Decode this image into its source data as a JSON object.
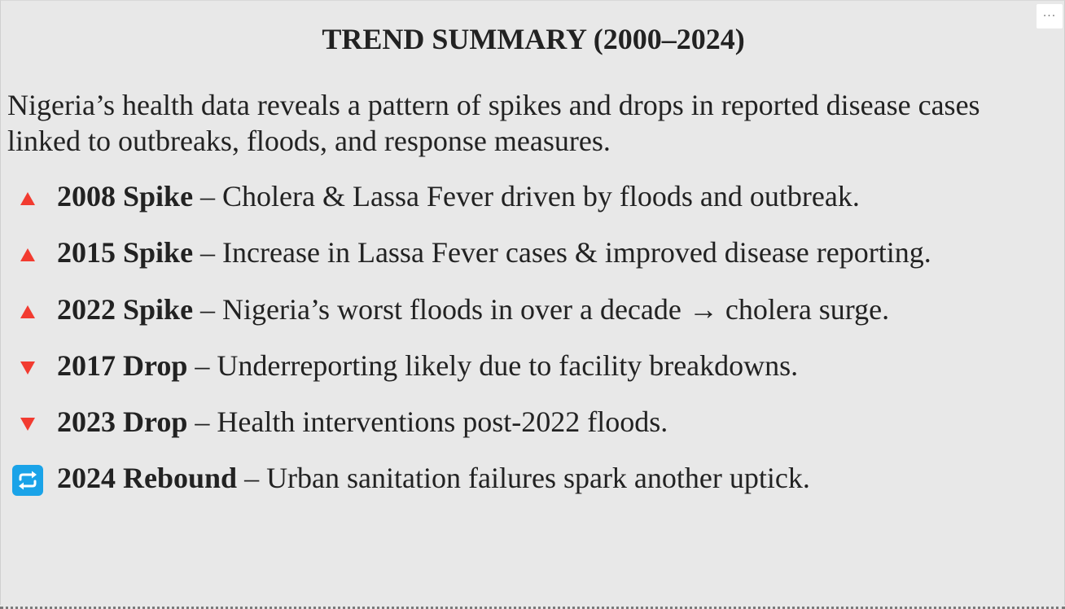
{
  "menu": {
    "more_label": "···"
  },
  "title": "TREND SUMMARY (2000–2024)",
  "intro": "Nigeria’s health data reveals a pattern of spikes and drops in reported disease cases linked to outbreaks, floods, and response measures.",
  "items": [
    {
      "icon": "up-triangle-icon",
      "label": "2008 Spike",
      "text": " – Cholera & Lassa Fever driven by floods and outbreak."
    },
    {
      "icon": "up-triangle-icon",
      "label": "2015 Spike",
      "text": " – Increase in Lassa Fever cases & improved disease reporting."
    },
    {
      "icon": "up-triangle-icon",
      "label": "2022 Spike",
      "text": " – Nigeria’s worst floods in over a decade → cholera surge."
    },
    {
      "icon": "down-triangle-icon",
      "label": "2017 Drop",
      "text": " – Underreporting likely due to facility breakdowns."
    },
    {
      "icon": "down-triangle-icon",
      "label": "2023 Drop",
      "text": " – Health interventions post-2022 floods."
    },
    {
      "icon": "repeat-icon",
      "label": "2024 Rebound",
      "text": " – Urban sanitation failures spark another uptick."
    }
  ],
  "colors": {
    "background": "#e8e8e8",
    "text": "#222222",
    "marker_red": "#f23b30",
    "repeat_blue": "#1aa3e8"
  }
}
